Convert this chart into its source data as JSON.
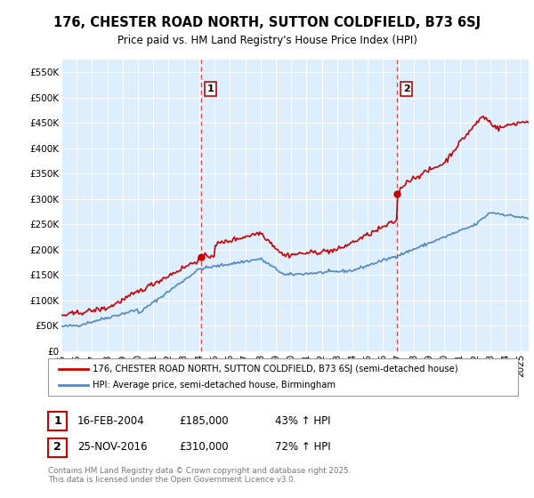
{
  "title": "176, CHESTER ROAD NORTH, SUTTON COLDFIELD, B73 6SJ",
  "subtitle": "Price paid vs. HM Land Registry's House Price Index (HPI)",
  "legend_line1": "176, CHESTER ROAD NORTH, SUTTON COLDFIELD, B73 6SJ (semi-detached house)",
  "legend_line2": "HPI: Average price, semi-detached house, Birmingham",
  "annotation1_label": "1",
  "annotation1_date": "16-FEB-2004",
  "annotation1_price": "£185,000",
  "annotation1_hpi": "43% ↑ HPI",
  "annotation2_label": "2",
  "annotation2_date": "25-NOV-2016",
  "annotation2_price": "£310,000",
  "annotation2_hpi": "72% ↑ HPI",
  "footer": "Contains HM Land Registry data © Crown copyright and database right 2025.\nThis data is licensed under the Open Government Licence v3.0.",
  "sale_color": "#cc0000",
  "hpi_color": "#5588bb",
  "chart_bg_color": "#ddeeff",
  "vline_color": "#dd4444",
  "sale_date1": 2004.12,
  "sale_price1": 185000,
  "sale_date2": 2016.9,
  "sale_price2": 310000,
  "ylim": [
    0,
    575000
  ],
  "xlim_left": 1995.0,
  "xlim_right": 2025.5,
  "yticks": [
    0,
    50000,
    100000,
    150000,
    200000,
    250000,
    300000,
    350000,
    400000,
    450000,
    500000,
    550000
  ],
  "xtick_years": [
    1995,
    1996,
    1997,
    1998,
    1999,
    2000,
    2001,
    2002,
    2003,
    2004,
    2005,
    2006,
    2007,
    2008,
    2009,
    2010,
    2011,
    2012,
    2013,
    2014,
    2015,
    2016,
    2017,
    2018,
    2019,
    2020,
    2021,
    2022,
    2023,
    2024,
    2025
  ]
}
